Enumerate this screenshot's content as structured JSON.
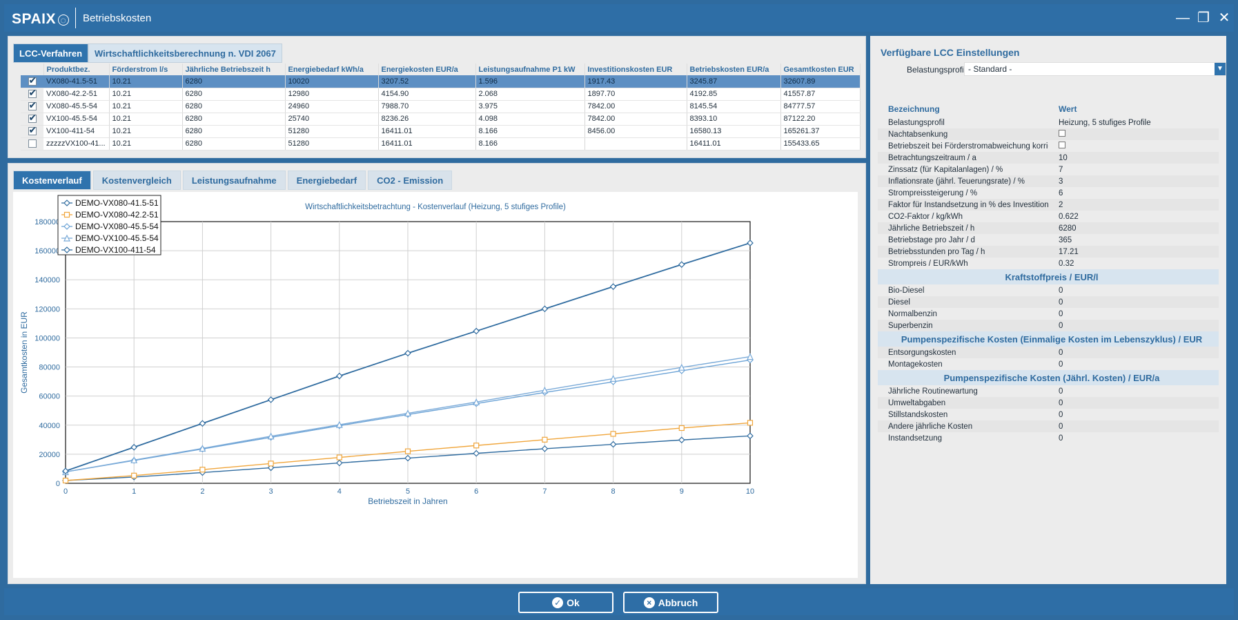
{
  "window": {
    "logo": "SPAIX",
    "title": "Betriebskosten",
    "colors": {
      "primary": "#2e6ea6",
      "blue_dark": "#2f73ad",
      "series_blue": "#2f6b9f",
      "series_orange": "#f0a53a",
      "series_light": "#6ca3d6"
    }
  },
  "top_tabs": [
    {
      "label": "LCC-Verfahren",
      "active": true
    },
    {
      "label": "Wirtschaftlichkeitsberechnung n. VDI 2067",
      "active": false
    }
  ],
  "product_table": {
    "headers": [
      "Produktbez.",
      "Förderstrom l/s",
      "Jährliche Betriebszeit h",
      "Energiebedarf kWh/a",
      "Energiekosten EUR/a",
      "Leistungsaufnahme P1 kW",
      "Investitionskosten EUR",
      "Betriebskosten EUR/a",
      "Gesamtkosten EUR"
    ],
    "rows": [
      {
        "checked": true,
        "selected": true,
        "cells": [
          "VX080-41.5-51",
          "10.21",
          "6280",
          "10020",
          "3207.52",
          "1.596",
          "1917.43",
          "3245.87",
          "32607.89"
        ]
      },
      {
        "checked": true,
        "selected": false,
        "cells": [
          "VX080-42.2-51",
          "10.21",
          "6280",
          "12980",
          "4154.90",
          "2.068",
          "1897.70",
          "4192.85",
          "41557.87"
        ]
      },
      {
        "checked": true,
        "selected": false,
        "cells": [
          "VX080-45.5-54",
          "10.21",
          "6280",
          "24960",
          "7988.70",
          "3.975",
          "7842.00",
          "8145.54",
          "84777.57"
        ]
      },
      {
        "checked": true,
        "selected": false,
        "cells": [
          "VX100-45.5-54",
          "10.21",
          "6280",
          "25740",
          "8236.26",
          "4.098",
          "7842.00",
          "8393.10",
          "87122.20"
        ]
      },
      {
        "checked": true,
        "selected": false,
        "cells": [
          "VX100-411-54",
          "10.21",
          "6280",
          "51280",
          "16411.01",
          "8.166",
          "8456.00",
          "16580.13",
          "165261.37"
        ]
      },
      {
        "checked": false,
        "selected": false,
        "cells": [
          "zzzzzVX100-41...",
          "10.21",
          "6280",
          "51280",
          "16411.01",
          "8.166",
          "",
          "16411.01",
          "155433.65"
        ]
      }
    ]
  },
  "chart_tabs": [
    {
      "label": "Kostenverlauf",
      "active": true
    },
    {
      "label": "Kostenvergleich",
      "active": false
    },
    {
      "label": "Leistungsaufnahme",
      "active": false
    },
    {
      "label": "Energiebedarf",
      "active": false
    },
    {
      "label": "CO2 - Emission",
      "active": false
    }
  ],
  "chart_data": {
    "type": "line",
    "title": "Wirtschaftlichkeitsbetrachtung - Kostenverlauf (Heizung, 5 stufiges Profile)",
    "xlabel": "Betriebszeit in Jahren",
    "ylabel": "Gesamtkosten in EUR",
    "xlim": [
      0,
      10
    ],
    "ylim": [
      0,
      180000
    ],
    "grid": true,
    "legend": "top-left",
    "x": [
      0,
      1,
      2,
      3,
      4,
      5,
      6,
      7,
      8,
      9,
      10
    ],
    "yticks": [
      0,
      20000,
      40000,
      60000,
      80000,
      100000,
      120000,
      140000,
      160000,
      180000
    ],
    "series": [
      {
        "name": "DEMO-VX080-41.5-51",
        "color": "#2f6b9f",
        "marker": "diamond",
        "values": [
          1917,
          4300,
          7400,
          10700,
          14000,
          17300,
          20600,
          23800,
          26800,
          29800,
          32600
        ]
      },
      {
        "name": "DEMO-VX080-42.2-51",
        "color": "#f0a53a",
        "marker": "square",
        "values": [
          1898,
          5300,
          9400,
          13600,
          17800,
          22000,
          26000,
          30000,
          34000,
          38000,
          41600
        ]
      },
      {
        "name": "DEMO-VX080-45.5-54",
        "color": "#6ca3d6",
        "marker": "diamond",
        "values": [
          7842,
          15700,
          23600,
          31600,
          39600,
          47300,
          54800,
          62500,
          69800,
          77400,
          84800
        ]
      },
      {
        "name": "DEMO-VX100-45.5-54",
        "color": "#7aaad8",
        "marker": "triangle",
        "values": [
          7842,
          16000,
          24000,
          32400,
          40300,
          48200,
          55900,
          64000,
          72000,
          79700,
          87100
        ]
      },
      {
        "name": "DEMO-VX100-411-54",
        "color": "#2f6b9f",
        "marker": "diamond",
        "values": [
          8456,
          24800,
          41200,
          57500,
          73800,
          89500,
          104700,
          120000,
          135300,
          150500,
          165300
        ]
      }
    ]
  },
  "settings": {
    "title": "Verfügbare LCC Einstellungen",
    "profile_label": "Belastungsprofil",
    "profile_value": "- Standard -",
    "headers": [
      "Bezeichnung",
      "Wert"
    ],
    "rows": [
      [
        "Belastungsprofil",
        "Heizung, 5 stufiges Profile"
      ],
      [
        "Nachtabsenkung",
        ""
      ],
      [
        "Betriebszeit bei Förderstromabweichung korrigieren",
        ""
      ],
      [
        "Betrachtungszeitraum / a",
        "10"
      ],
      [
        "Zinssatz (für Kapitalanlagen) / %",
        "7"
      ],
      [
        "Inflationsrate (jährl. Teuerungsrate) / %",
        "3"
      ],
      [
        "Strompreissteigerung / %",
        "6"
      ],
      [
        "Faktor für Instandsetzung in % des Investitionsbetrages / %",
        "2"
      ],
      [
        "CO2-Faktor / kg/kWh",
        "0.622"
      ],
      [
        "Jährliche Betriebszeit / h",
        "6280"
      ],
      [
        "Betriebstage pro Jahr / d",
        "365"
      ],
      [
        "Betriebsstunden pro Tag / h",
        "17.21"
      ],
      [
        "Strompreis / EUR/kWh",
        "0.32"
      ]
    ],
    "section1": "Kraftstoffpreis / EUR/l",
    "fuel": [
      [
        "Bio-Diesel",
        "0"
      ],
      [
        "Diesel",
        "0"
      ],
      [
        "Normalbenzin",
        "0"
      ],
      [
        "Superbenzin",
        "0"
      ]
    ],
    "section2": "Pumpenspezifische Kosten (Einmalige Kosten im Lebenszyklus) / EUR",
    "once": [
      [
        "Entsorgungskosten",
        "0"
      ],
      [
        "Montagekosten",
        "0"
      ]
    ],
    "section3": "Pumpenspezifische Kosten (Jährl. Kosten) / EUR/a",
    "annual": [
      [
        "Jährliche Routinewartung",
        "0"
      ],
      [
        "Umweltabgaben",
        "0"
      ],
      [
        "Stillstandskosten",
        "0"
      ],
      [
        "Andere jährliche Kosten",
        "0"
      ],
      [
        "Instandsetzung",
        "0"
      ]
    ]
  },
  "buttons": {
    "ok": "Ok",
    "cancel": "Abbruch"
  }
}
